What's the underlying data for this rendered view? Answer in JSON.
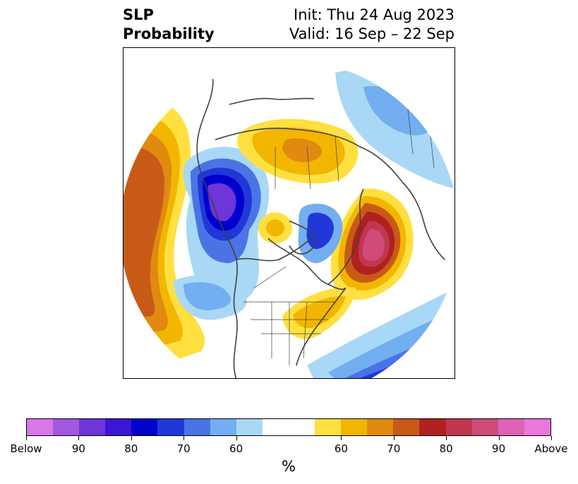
{
  "header": {
    "variable": "SLP",
    "type": "Probability",
    "init": "Init: Thu 24 Aug 2023",
    "valid": "Valid: 16 Sep – 22 Sep"
  },
  "colorbar": {
    "unit": "%",
    "colors": [
      "#d977e8",
      "#a257e0",
      "#6e35d8",
      "#3c15d6",
      "#0000cc",
      "#2038d8",
      "#4a74e4",
      "#73aef0",
      "#a9d8f6",
      "#ffffff",
      "#ffffff",
      "#ffe040",
      "#f2b600",
      "#e08a10",
      "#c85a18",
      "#b02020",
      "#c03850",
      "#cf4b78",
      "#df62b6",
      "#ea78dd"
    ],
    "tick_labels": [
      "Below",
      "90",
      "80",
      "70",
      "60",
      "60",
      "70",
      "80",
      "90",
      "Above"
    ]
  },
  "map": {
    "projection": "north-polar-stereographic",
    "features": [
      "coastlines",
      "country-borders",
      "state-borders"
    ],
    "anomalies": [
      {
        "region": "north-pacific",
        "category": "above",
        "peak_probability": 75
      },
      {
        "region": "alaska-bering",
        "category": "below",
        "peak_probability": 85
      },
      {
        "region": "north-atlantic",
        "category": "above",
        "peak_probability": 90
      },
      {
        "region": "siberia",
        "category": "above",
        "peak_probability": 70
      },
      {
        "region": "east-pacific-us-west-coast",
        "category": "below",
        "peak_probability": 65
      },
      {
        "region": "subtropical-atlantic",
        "category": "below",
        "peak_probability": 80
      },
      {
        "region": "scandinavia-europe",
        "category": "below",
        "peak_probability": 60
      },
      {
        "region": "canadian-arctic",
        "category": "below",
        "peak_probability": 70
      },
      {
        "region": "arctic-ocean",
        "category": "above",
        "peak_probability": 60
      },
      {
        "region": "eastern-north-america",
        "category": "above",
        "peak_probability": 70
      }
    ]
  }
}
